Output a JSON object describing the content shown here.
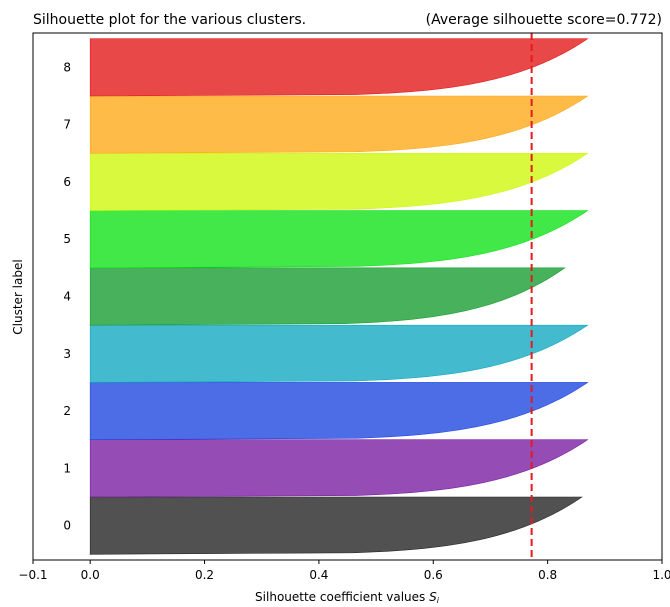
{
  "chart_data": {
    "type": "area",
    "title": "Silhouette plot for the various clusters.",
    "subtitle": "(Average silhouette score=0.772)",
    "xlabel": "Silhouette coefficient values $S_i$",
    "xlabel_main": "Silhouette coefficient values ",
    "xlabel_symbol": "S",
    "xlabel_subscript": "i",
    "ylabel": "Cluster label",
    "xlim": [
      -0.1,
      1.0
    ],
    "ylim": [
      0,
      92
    ],
    "x_ticks": [
      -0.1,
      0.0,
      0.2,
      0.4,
      0.6,
      0.8,
      1.0
    ],
    "x_tick_labels": [
      "−0.1",
      "0.0",
      "0.2",
      "0.4",
      "0.6",
      "0.8",
      "1.0"
    ],
    "average_score": 0.772,
    "average_line_color": "#e41a1c",
    "grid": false,
    "clusters": [
      {
        "label": "0",
        "y_lower": 1.0,
        "y_upper": 11.0,
        "max": 0.86,
        "min": 0.0,
        "color": "#262626"
      },
      {
        "label": "1",
        "y_lower": 11.0,
        "y_upper": 21.0,
        "max": 0.87,
        "min": 0.0,
        "color": "#7a1fa2"
      },
      {
        "label": "2",
        "y_lower": 21.0,
        "y_upper": 31.0,
        "max": 0.87,
        "min": 0.0,
        "color": "#1f49e0"
      },
      {
        "label": "3",
        "y_lower": 31.0,
        "y_upper": 41.0,
        "max": 0.87,
        "min": 0.0,
        "color": "#14a9c0"
      },
      {
        "label": "4",
        "y_lower": 41.0,
        "y_upper": 51.0,
        "max": 0.83,
        "min": 0.0,
        "color": "#1a9e33"
      },
      {
        "label": "5",
        "y_lower": 51.0,
        "y_upper": 61.0,
        "max": 0.87,
        "min": 0.0,
        "color": "#12e21a"
      },
      {
        "label": "6",
        "y_lower": 61.0,
        "y_upper": 71.0,
        "max": 0.87,
        "min": 0.0,
        "color": "#cff70f"
      },
      {
        "label": "7",
        "y_lower": 71.0,
        "y_upper": 81.0,
        "max": 0.87,
        "min": 0.0,
        "color": "#ffaa1a"
      },
      {
        "label": "8",
        "y_lower": 81.0,
        "y_upper": 91.0,
        "max": 0.87,
        "min": 0.0,
        "color": "#e41a1c"
      }
    ]
  }
}
